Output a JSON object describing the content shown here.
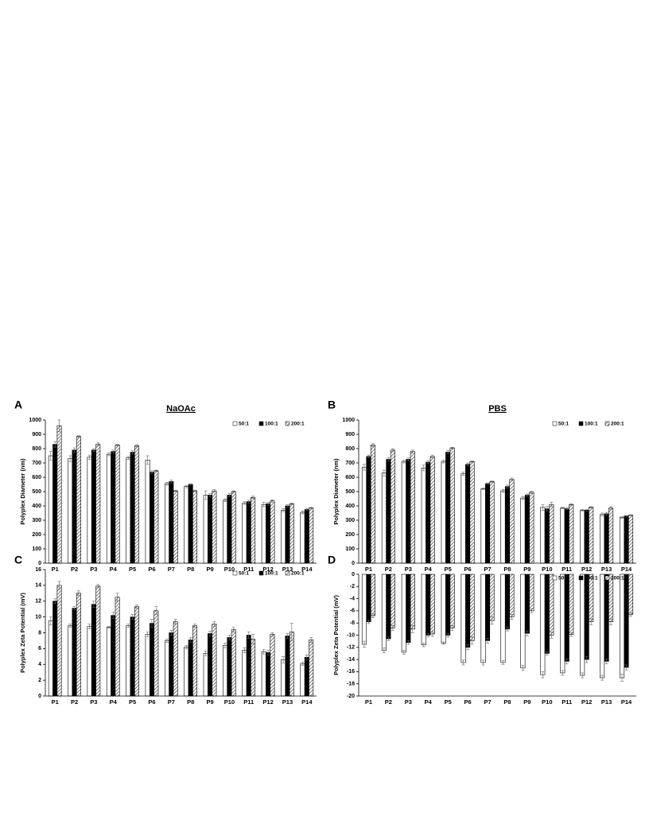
{
  "chart_data": [
    {
      "type": "bar",
      "panel": "A",
      "title": "NaOAc",
      "y_label": "Polyplex Diameter (nm)",
      "categories": [
        "P1",
        "P2",
        "P3",
        "P4",
        "P5",
        "P6",
        "P7",
        "P8",
        "P9",
        "P10",
        "P11",
        "P12",
        "P13",
        "P14"
      ],
      "series": [
        {
          "name": "50:1",
          "color": "#ffffff",
          "values": [
            750,
            730,
            740,
            760,
            735,
            720,
            555,
            535,
            475,
            440,
            420,
            410,
            370,
            355
          ],
          "errors": [
            30,
            20,
            15,
            10,
            10,
            30,
            10,
            8,
            30,
            10,
            10,
            15,
            10,
            10
          ]
        },
        {
          "name": "100:1",
          "color": "#000000",
          "values": [
            830,
            790,
            790,
            780,
            775,
            635,
            570,
            550,
            475,
            475,
            430,
            415,
            400,
            375
          ],
          "errors": [
            20,
            15,
            10,
            10,
            10,
            10,
            10,
            5,
            10,
            10,
            10,
            10,
            8,
            8
          ]
        },
        {
          "name": "200:1",
          "color": "#555555",
          "hatch": true,
          "values": [
            960,
            885,
            830,
            825,
            820,
            645,
            505,
            505,
            505,
            500,
            460,
            435,
            415,
            385
          ],
          "errors": [
            40,
            5,
            10,
            5,
            8,
            5,
            5,
            5,
            8,
            5,
            8,
            8,
            5,
            5
          ]
        }
      ],
      "ylim": [
        0,
        1000
      ],
      "yticks": [
        0,
        100,
        200,
        300,
        400,
        500,
        600,
        700,
        800,
        900,
        1000
      ],
      "legend": "upper right"
    },
    {
      "type": "bar",
      "panel": "B",
      "title": "PBS",
      "y_label": "Polyplex Diameter (nm)",
      "categories": [
        "P1",
        "P2",
        "P3",
        "P4",
        "P5",
        "P6",
        "P7",
        "P8",
        "P9",
        "P10",
        "P11",
        "P12",
        "P13",
        "P14"
      ],
      "series": [
        {
          "name": "50:1",
          "color": "#ffffff",
          "values": [
            670,
            630,
            710,
            665,
            710,
            625,
            520,
            505,
            455,
            390,
            385,
            370,
            340,
            320
          ],
          "errors": [
            20,
            20,
            10,
            20,
            10,
            10,
            5,
            10,
            10,
            20,
            5,
            5,
            10,
            5
          ]
        },
        {
          "name": "100:1",
          "color": "#000000",
          "values": [
            745,
            725,
            725,
            705,
            775,
            690,
            555,
            535,
            475,
            380,
            380,
            370,
            345,
            330
          ],
          "errors": [
            10,
            10,
            10,
            10,
            10,
            10,
            5,
            10,
            8,
            15,
            5,
            5,
            10,
            3
          ]
        },
        {
          "name": "200:1",
          "color": "#555555",
          "hatch": true,
          "values": [
            825,
            790,
            780,
            745,
            805,
            710,
            570,
            585,
            495,
            410,
            410,
            390,
            385,
            335
          ],
          "errors": [
            10,
            10,
            10,
            10,
            5,
            5,
            5,
            10,
            8,
            15,
            5,
            5,
            10,
            3
          ]
        }
      ],
      "ylim": [
        0,
        1000
      ],
      "yticks": [
        0,
        100,
        200,
        300,
        400,
        500,
        600,
        700,
        800,
        900,
        1000
      ],
      "legend": "upper right"
    },
    {
      "type": "bar",
      "panel": "C",
      "y_label": "Polyplex Zeta Potential (mV)",
      "categories": [
        "P1",
        "P2",
        "P3",
        "P4",
        "P5",
        "P6",
        "P7",
        "P8",
        "P9",
        "P10",
        "P11",
        "P12",
        "P13",
        "P14"
      ],
      "series": [
        {
          "name": "50:1",
          "color": "#ffffff",
          "values": [
            9.5,
            8.9,
            8.8,
            8.7,
            8.9,
            7.8,
            7,
            6.2,
            5.4,
            6.4,
            5.8,
            5.6,
            4.6,
            4.1
          ],
          "errors": [
            0.5,
            0.2,
            0.3,
            0.1,
            0.2,
            0.3,
            0.2,
            0.2,
            0.3,
            0.3,
            0.3,
            0.3,
            0.4,
            0.2
          ]
        },
        {
          "name": "100:1",
          "color": "#000000",
          "values": [
            12,
            11.1,
            11.6,
            10.2,
            10,
            9.2,
            8,
            7.1,
            7.9,
            7.4,
            7.7,
            5.5,
            7.6,
            4.9
          ],
          "errors": [
            0.3,
            0.2,
            0.4,
            0.4,
            0.3,
            0.5,
            0.3,
            0.3,
            0.3,
            0.3,
            0.4,
            0.3,
            0.3,
            0.3
          ]
        },
        {
          "name": "200:1",
          "color": "#555555",
          "hatch": true,
          "values": [
            14,
            13,
            13.9,
            12.5,
            11.3,
            10.8,
            9.4,
            8.9,
            9.1,
            8.4,
            7.2,
            7.8,
            8.1,
            7.1
          ],
          "errors": [
            0.5,
            0.3,
            0.2,
            0.5,
            0.2,
            0.5,
            0.3,
            0.2,
            0.3,
            0.3,
            0.6,
            0.2,
            1.1,
            0.3
          ]
        }
      ],
      "ylim": [
        0,
        16
      ],
      "yticks": [
        0,
        2,
        4,
        6,
        8,
        10,
        12,
        14,
        16
      ],
      "legend": "upper right"
    },
    {
      "type": "bar",
      "panel": "D",
      "y_label": "Polyplex Zeta Potential (mV)",
      "categories": [
        "P1",
        "P2",
        "P3",
        "P4",
        "P5",
        "P6",
        "P7",
        "P8",
        "P9",
        "P10",
        "P11",
        "P12",
        "P13",
        "P14"
      ],
      "series": [
        {
          "name": "50:1",
          "color": "#ffffff",
          "values": [
            -11.5,
            -12.5,
            -12.8,
            -11.6,
            -11.3,
            -14.5,
            -14.5,
            -14.5,
            -15.4,
            -16.5,
            -16.2,
            -16.6,
            -17,
            -17
          ],
          "errors": [
            0.5,
            0.4,
            0.3,
            0.3,
            0.2,
            0.4,
            0.4,
            0.3,
            0.4,
            0.5,
            0.4,
            0.4,
            0.4,
            0.6
          ]
        },
        {
          "name": "100:1",
          "color": "#000000",
          "values": [
            -7.8,
            -10.6,
            -11.2,
            -10,
            -10,
            -12,
            -10.9,
            -9,
            -9.7,
            -13,
            -14.3,
            -14,
            -14.3,
            -15.3
          ],
          "errors": [
            0.3,
            0.3,
            0.3,
            0.3,
            0.3,
            0.4,
            0.4,
            0.3,
            0.4,
            0.3,
            0.4,
            0.5,
            0.4,
            0.4
          ]
        },
        {
          "name": "200:1",
          "color": "#555555",
          "hatch": true,
          "values": [
            -6.8,
            -8.8,
            -9,
            -9.8,
            -8.8,
            -10.9,
            -7.6,
            -7,
            -6,
            -10,
            -9.9,
            -7.8,
            -7.8,
            -6.6
          ],
          "errors": [
            0.3,
            0.4,
            0.6,
            0.4,
            0.4,
            0.6,
            0.6,
            0.4,
            0.3,
            0.5,
            0.3,
            0.5,
            0.5,
            0.3
          ]
        }
      ],
      "ylim": [
        -20,
        0
      ],
      "yticks": [
        -20,
        -18,
        -16,
        -14,
        -12,
        -10,
        -8,
        -6,
        -4,
        -2,
        0
      ],
      "legend": "upper right"
    }
  ]
}
